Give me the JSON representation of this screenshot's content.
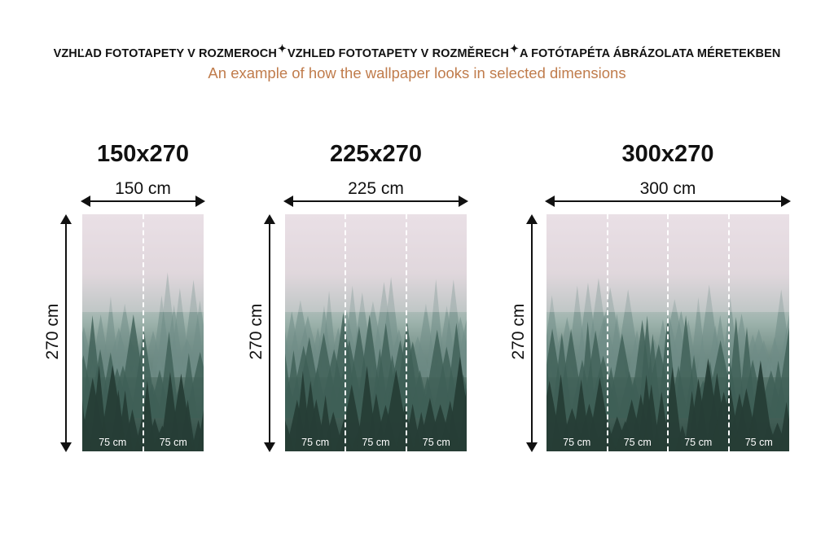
{
  "header": {
    "titles": [
      "VZHĽAD FOTOTAPETY V ROZMEROCH",
      "VZHLED FOTOTAPETY V ROZMĚRECH",
      "A FOTÓTAPÉTA ÁBRÁZOLATA MÉRETEKBEN"
    ],
    "separator_icon": "sparkle-icon",
    "subtitle": "An example of how the wallpaper looks in selected dimensions"
  },
  "colors": {
    "subtitle": "#c07c4c",
    "text": "#111111"
  },
  "variants": [
    {
      "title": "150x270",
      "width_label": "150 cm",
      "height_label": "270 cm",
      "strips": [
        "75 cm",
        "75 cm"
      ]
    },
    {
      "title": "225x270",
      "width_label": "225 cm",
      "height_label": "270 cm",
      "strips": [
        "75 cm",
        "75 cm",
        "75 cm"
      ]
    },
    {
      "title": "300x270",
      "width_label": "300 cm",
      "height_label": "270 cm",
      "strips": [
        "75 cm",
        "75 cm",
        "75 cm",
        "75 cm"
      ]
    }
  ]
}
